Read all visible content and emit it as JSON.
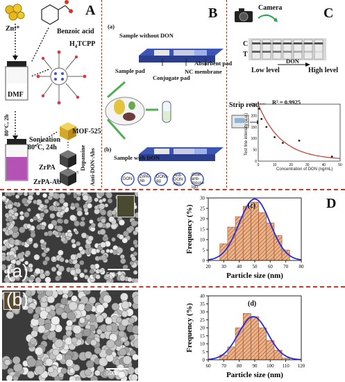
{
  "panel_a_top": {
    "letter": "A",
    "zn": "Zn⁴⁺",
    "benzoic": "Benzoic acid",
    "h4tcpp": "H",
    "h4tcpp_sub": "4",
    "h4tcpp_tail": "TCPP",
    "dmf": "DMF",
    "cond1": "80°C, 2h",
    "sonication": "Sonication",
    "cond2": "80°C, 24h",
    "mof": "MOF-525",
    "dopamine": "Dopamine",
    "zrpa": "ZrPA",
    "antidon": "Anti-DON-Abs",
    "zrpaab": "ZrPA-Ab"
  },
  "panel_b": {
    "letter": "B",
    "sub_a": "(a)",
    "without": "Sample without DON",
    "sample_pad": "Sample pad",
    "conjugate_pad": "Conjugate pad",
    "nc": "NC membrane",
    "absorbent": "Absorbent pad",
    "sub_b": "(b)",
    "with": "Sample with DON",
    "legend": [
      "DON",
      "ZrPA-Ab",
      "DONs-gg",
      "Anti-DON Abs",
      "Goat anti-mouse IgG"
    ]
  },
  "panel_c": {
    "letter": "C",
    "camera": "Camera",
    "c_line": "C",
    "t_line": "T",
    "low": "Low level",
    "don": "DON",
    "high": "High level",
    "strip_reader": "Strip reader",
    "r2": "R² = 0.9925",
    "ylabel": "Test line intensity (a.u.)",
    "xlabel": "Concentration of DON (ng/mL)"
  },
  "panel_d": {
    "letter": "D",
    "img_a_label": "(a)",
    "img_b_label": "(b)",
    "scale_a": "500nm",
    "scale_b": "500nm"
  },
  "colors": {
    "bar_fill": "#e9b58d",
    "bar_hatch": "#a64b1e",
    "fit_line": "#2a2ad0",
    "divider": "#c0392b",
    "curve_red": "#c0392b"
  },
  "chart_data": [
    {
      "type": "bar",
      "panel": "(c)",
      "x": [
        30,
        35,
        40,
        45,
        50,
        55,
        60,
        65,
        70
      ],
      "values": [
        8,
        16,
        21,
        26,
        28,
        23,
        18,
        12,
        5
      ],
      "xlabel": "Particle size (nm)",
      "ylabel": "Frequency (%)",
      "xticks": [
        20,
        30,
        40,
        50,
        60,
        70,
        80
      ],
      "yticks": [
        0,
        5,
        10,
        15,
        20,
        25,
        30
      ],
      "xlim": [
        20,
        80
      ],
      "ylim": [
        0,
        30
      ],
      "fit": {
        "mean": 50,
        "sd": 10,
        "peak": 29.5
      }
    },
    {
      "type": "bar",
      "panel": "(d)",
      "x": [
        70,
        75,
        80,
        85,
        90,
        95,
        100,
        105,
        110
      ],
      "values": [
        3,
        8,
        20,
        29,
        27,
        20,
        12,
        6,
        1
      ],
      "xlabel": "Particle size (nm)",
      "ylabel": "Frequency (%)",
      "xticks": [
        60,
        70,
        80,
        90,
        100,
        110,
        120
      ],
      "yticks": [
        0,
        5,
        10,
        15,
        20,
        25,
        30,
        35,
        40
      ],
      "xlim": [
        60,
        120
      ],
      "ylim": [
        0,
        40
      ],
      "fit": {
        "mean": 89,
        "sd": 9.5,
        "peak": 27
      }
    },
    {
      "type": "scatter",
      "panel": "C-calibration",
      "x": [
        0.5,
        2,
        5,
        10,
        15,
        25,
        45
      ],
      "values": [
        230,
        185,
        150,
        105,
        80,
        90,
        20
      ],
      "xticks": [
        0,
        10,
        20,
        30,
        40,
        50
      ],
      "yticks": [
        0,
        50,
        100,
        150,
        200,
        250
      ],
      "xlim": [
        0,
        50
      ],
      "ylim": [
        0,
        250
      ]
    }
  ]
}
